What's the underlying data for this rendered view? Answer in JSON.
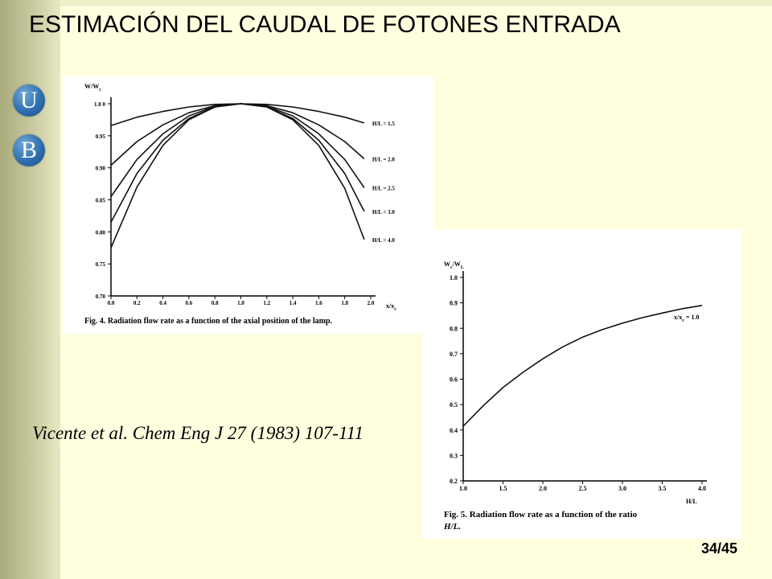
{
  "slide": {
    "title": "ESTIMACIÓN DEL CAUDAL DE FOTONES ENTRADA",
    "citation": "Vicente et al. Chem Eng J 27 (1983) 107-111",
    "page": "34/45"
  },
  "logo": {
    "letter1": "U",
    "letter2": "B",
    "color": "#2f6fb0"
  },
  "colors": {
    "background": "#ffffe0",
    "sidebar": "#b9bb8c"
  },
  "chart_data": [
    {
      "type": "line",
      "caption": "Fig. 4. Radiation flow rate as a function of the axial position of the lamp.",
      "ylabel": "W/W",
      "ylabel_sub": "c",
      "xlabel": "x/x",
      "xlabel_sub": "c",
      "xlim": [
        0.0,
        2.0
      ],
      "ylim": [
        0.7,
        1.0
      ],
      "x_ticks": [
        "0.0",
        "0.2",
        "0.4",
        "0.6",
        "0.8",
        "1.0",
        "1.2",
        "1.4",
        "1.6",
        "1.8",
        "2.0"
      ],
      "y_ticks": [
        "0.70",
        "0.75",
        "0.80",
        "0.85",
        "0.90",
        "0.95",
        "1.0 0"
      ],
      "x": [
        0.0,
        0.2,
        0.4,
        0.6,
        0.8,
        1.0,
        1.2,
        1.4,
        1.6,
        1.8,
        1.95
      ],
      "series": [
        {
          "name": "H/L = 1.5",
          "values": [
            0.966,
            0.979,
            0.988,
            0.995,
            0.999,
            1.0,
            0.999,
            0.995,
            0.988,
            0.979,
            0.97
          ]
        },
        {
          "name": "H/L = 2.0",
          "values": [
            0.904,
            0.941,
            0.967,
            0.986,
            0.997,
            1.0,
            0.997,
            0.986,
            0.967,
            0.941,
            0.914
          ]
        },
        {
          "name": "H/L = 2.5",
          "values": [
            0.855,
            0.913,
            0.953,
            0.981,
            0.996,
            1.0,
            0.996,
            0.981,
            0.953,
            0.913,
            0.869
          ]
        },
        {
          "name": "H/L = 3.0",
          "values": [
            0.815,
            0.891,
            0.943,
            0.977,
            0.995,
            1.0,
            0.995,
            0.977,
            0.943,
            0.891,
            0.832
          ]
        },
        {
          "name": "H/L = 4.0",
          "values": [
            0.775,
            0.87,
            0.935,
            0.975,
            0.995,
            1.0,
            0.995,
            0.975,
            0.935,
            0.868,
            0.788
          ]
        }
      ]
    },
    {
      "type": "line",
      "caption_line1": "Fig. 5. Radiation flow rate as a function of the ratio",
      "caption_line2": "H/L.",
      "ylabel": "W",
      "ylabel_sub": "c",
      "ylabel_mid": "/W",
      "ylabel_sub2": "L",
      "xlabel": "H/L",
      "xlim": [
        1.0,
        4.0
      ],
      "ylim": [
        0.2,
        1.0
      ],
      "x_ticks": [
        "1.0",
        "1.5",
        "2.0",
        "2.5",
        "3.0",
        "3.5",
        "4.0"
      ],
      "y_ticks": [
        "0.2",
        "0.3",
        "0.4",
        "0.5",
        "0.6",
        "0.7",
        "0.8",
        "0.9",
        "1.0"
      ],
      "annotation": "x/x",
      "annotation_sub": "c",
      "annotation_tail": " = 1.0",
      "x": [
        1.0,
        1.25,
        1.5,
        1.75,
        2.0,
        2.25,
        2.5,
        2.75,
        3.0,
        3.25,
        3.5,
        3.75,
        4.0
      ],
      "series": [
        {
          "name": "x/xc = 1.0",
          "values": [
            0.415,
            0.495,
            0.567,
            0.627,
            0.68,
            0.727,
            0.765,
            0.795,
            0.82,
            0.842,
            0.86,
            0.877,
            0.89
          ]
        }
      ]
    }
  ]
}
